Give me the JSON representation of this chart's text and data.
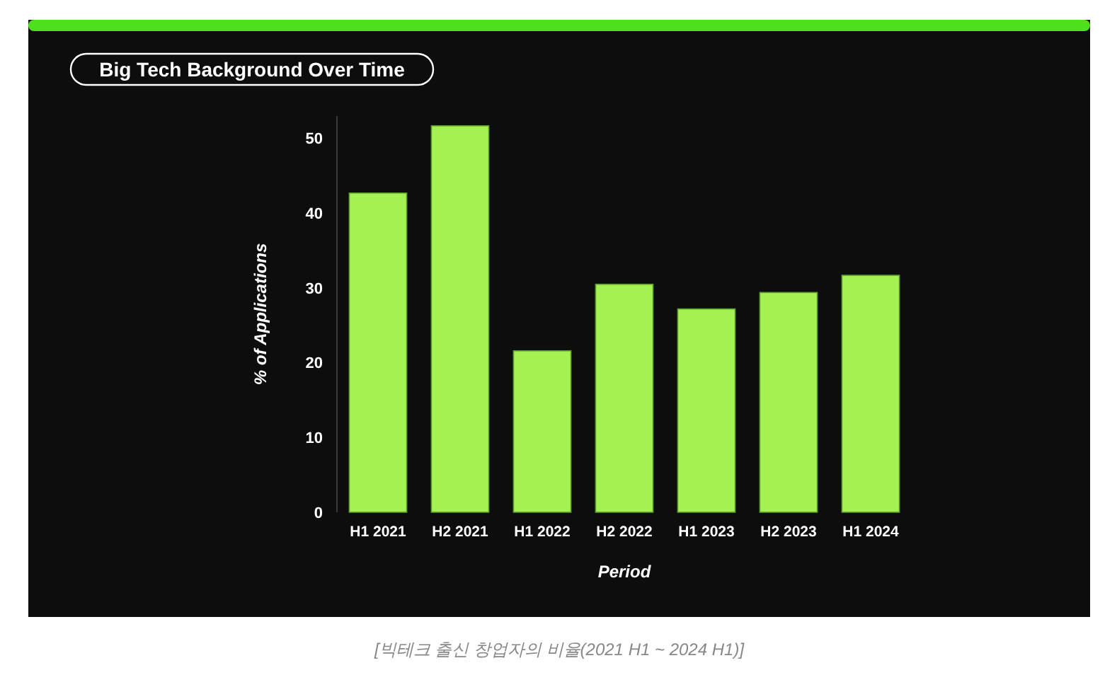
{
  "chart_data": {
    "type": "bar",
    "title": "Big Tech Background Over Time",
    "xlabel": "Period",
    "ylabel": "% of Applications",
    "categories": [
      "H1 2021",
      "H2 2021",
      "H1 2022",
      "H2 2022",
      "H1 2023",
      "H2 2023",
      "H1 2024"
    ],
    "values": [
      42.7,
      51.7,
      21.6,
      30.5,
      27.2,
      29.4,
      31.7
    ],
    "color": "#a3f251",
    "ylim": [
      0,
      53
    ],
    "yticks": [
      0,
      10,
      20,
      30,
      40,
      50
    ],
    "grid": false,
    "annotations": [
      "[빅테크 출신 창업자의 비율(2021 H1 ~ 2024 H1)]"
    ]
  }
}
